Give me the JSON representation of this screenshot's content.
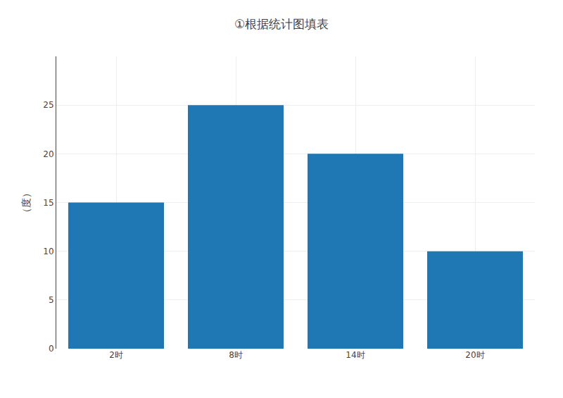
{
  "chart_data": {
    "type": "bar",
    "title": "①根据统计图填表",
    "categories": [
      "2时",
      "8时",
      "14时",
      "20时"
    ],
    "values": [
      15,
      25,
      20,
      10
    ],
    "ylabel": "（度）",
    "ylim": [
      0,
      30
    ],
    "yticks": [
      0,
      5,
      10,
      15,
      20,
      25
    ],
    "grid": true
  }
}
